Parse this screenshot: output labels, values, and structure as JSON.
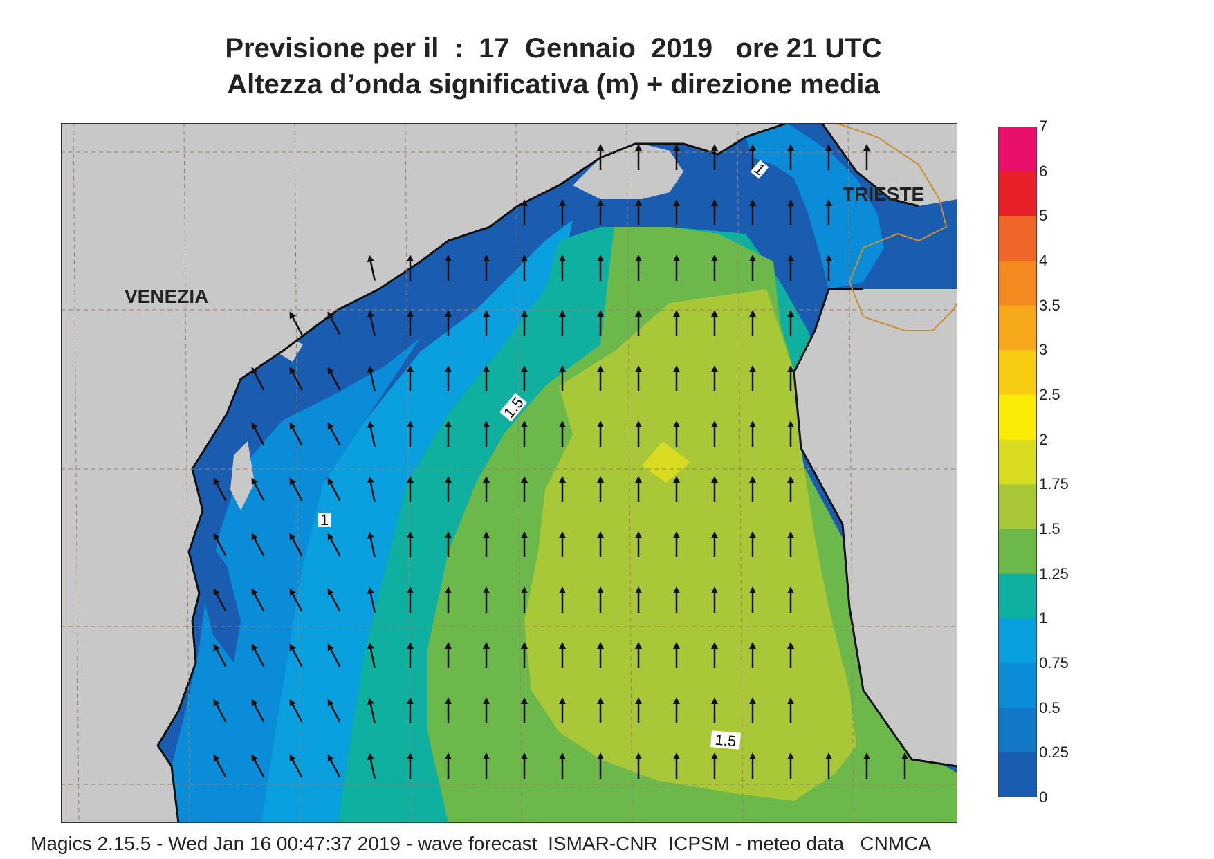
{
  "title": {
    "line1": "Previsione per il  :  17  Gennaio  2019   ore 21 UTC",
    "line2": "Altezza d’onda significativa (m) + direzione media"
  },
  "map": {
    "cities": [
      "VENEZIA",
      "TRIESTE"
    ],
    "contour_labels": [
      "1.5",
      "1.5",
      "1",
      "1"
    ],
    "colors": {
      "land": "#c8c8c8",
      "coast": "#111111",
      "border": "#c8902e",
      "grid": "#a08060"
    },
    "wave_direction": "north"
  },
  "colorbar": {
    "labels": [
      "7",
      "6",
      "5",
      "4",
      "3.5",
      "3",
      "2.5",
      "2",
      "1.75",
      "1.5",
      "1.25",
      "1",
      "0.75",
      "0.5",
      "0.25",
      "0"
    ],
    "colors": [
      "#e8106a",
      "#e8202a",
      "#f06628",
      "#f28a20",
      "#f5a81a",
      "#f8cc10",
      "#fbec08",
      "#d8dc20",
      "#a8c838",
      "#6cb84a",
      "#10b0a0",
      "#0aa0e0",
      "#0a8cd8",
      "#1478c8",
      "#1a5cb0"
    ]
  },
  "footer": "Magics 2.15.5 - Wed Jan 16 00:47:37 2019 - wave forecast  ISMAR-CNR  ICPSM - meteo data   CNMCA"
}
